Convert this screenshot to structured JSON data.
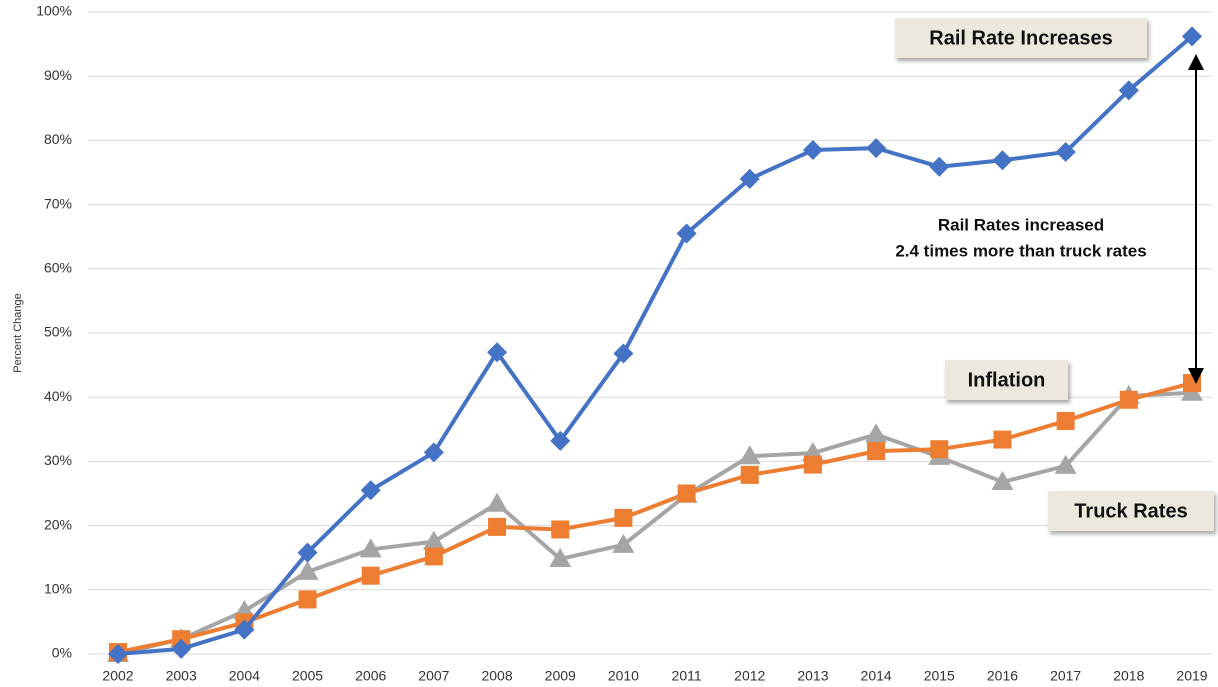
{
  "chart_data": {
    "type": "line",
    "y_label": "Percent Change",
    "categories": [
      "2002",
      "2003",
      "2004",
      "2005",
      "2006",
      "2007",
      "2008",
      "2009",
      "2010",
      "2011",
      "2012",
      "2013",
      "2014",
      "2015",
      "2016",
      "2017",
      "2018",
      "2019"
    ],
    "series": [
      {
        "name": "Rail Rate Increases",
        "color": "#4472c4",
        "marker": "diamond",
        "values": [
          0,
          0.8,
          3.8,
          15.8,
          25.5,
          31.4,
          47,
          33.2,
          46.8,
          65.5,
          74,
          78.5,
          78.8,
          75.9,
          76.9,
          78.2,
          87.8,
          96.2
        ]
      },
      {
        "name": "Inflation",
        "color": "#ed7d31",
        "marker": "square",
        "values": [
          0.3,
          2.3,
          4.9,
          8.5,
          12.2,
          15.2,
          19.8,
          19.4,
          21.2,
          25,
          27.9,
          29.5,
          31.6,
          31.9,
          33.4,
          36.3,
          39.6,
          42.2
        ]
      },
      {
        "name": "Truck Rates",
        "color": "#a5a5a5",
        "marker": "triangle",
        "values": [
          0,
          2.3,
          6.7,
          12.8,
          16.3,
          17.5,
          23.4,
          14.8,
          17,
          24.8,
          30.8,
          31.3,
          34.2,
          30.7,
          26.8,
          29.3,
          40.2,
          40.7
        ]
      }
    ],
    "annotation": [
      "Rail Rates increased",
      "2.4 times more than truck rates"
    ],
    "ylim": [
      0,
      100
    ],
    "yticks": [
      {
        "value": 0,
        "label": "0%"
      },
      {
        "value": 10,
        "label": "10%"
      },
      {
        "value": 20,
        "label": "20%"
      },
      {
        "value": 30,
        "label": "30%"
      },
      {
        "value": 40,
        "label": "40%"
      },
      {
        "value": 50,
        "label": "50%"
      },
      {
        "value": 60,
        "label": "60%"
      },
      {
        "value": 70,
        "label": "70%"
      },
      {
        "value": 80,
        "label": "80%"
      },
      {
        "value": 90,
        "label": "90%"
      },
      {
        "value": 100,
        "label": "100%"
      }
    ],
    "grid": true
  }
}
